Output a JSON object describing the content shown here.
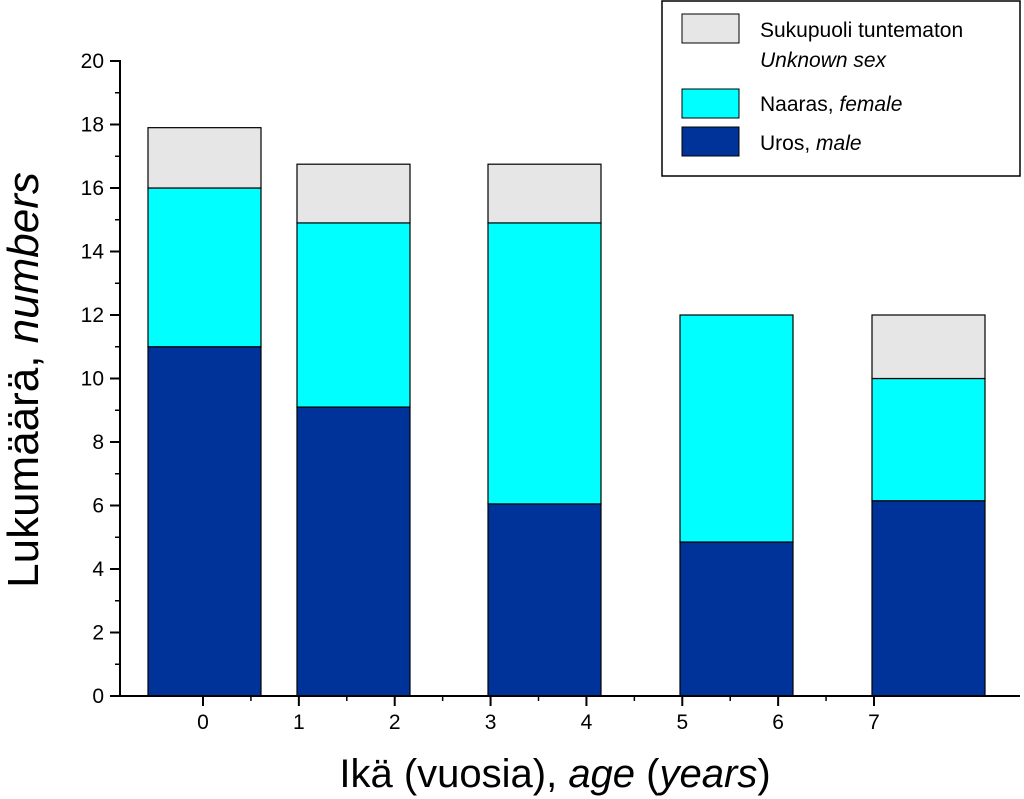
{
  "chart_data": {
    "type": "bar",
    "stacked": true,
    "categories": [
      "0",
      "1",
      "2",
      "3",
      "4",
      "5",
      "6",
      "7"
    ],
    "bar_groups": [
      {
        "male": 11,
        "female": 5,
        "unknown": 1.9
      },
      {
        "male": 9.1,
        "female": 5.8,
        "unknown": 1.85
      },
      {
        "male": 6.05,
        "female": 8.85,
        "unknown": 1.85
      },
      {
        "male": 4.85,
        "female": 7.15,
        "unknown": 0
      },
      {
        "male": 6.15,
        "female": 3.85,
        "unknown": 2
      }
    ],
    "series": [
      {
        "name": "Uros, male",
        "color": "#003399"
      },
      {
        "name": "Naaras, female",
        "color": "#00ffff"
      },
      {
        "name": "Sukupuoli tuntematon Unknown sex",
        "color": "#e6e6e6"
      }
    ],
    "ylim": [
      0,
      20
    ],
    "yticks": [
      "0",
      "2",
      "4",
      "6",
      "8",
      "10",
      "12",
      "14",
      "16",
      "18",
      "20"
    ],
    "xticks": [
      "0",
      "1",
      "2",
      "3",
      "4",
      "5",
      "6",
      "7"
    ],
    "xlabel": {
      "plain": "Ikä (vuosia), ",
      "italic_1": "age",
      "plain_2": " (",
      "italic_2": "years",
      "plain_3": ")"
    },
    "ylabel": {
      "plain": "Lukumäärä, ",
      "italic": "numbers"
    },
    "legend": {
      "position": "top-right",
      "items": [
        {
          "line1": "Sukupuoli tuntematon",
          "line2_italic": "Unknown sex",
          "color": "#e6e6e6"
        },
        {
          "plain": "Naaras, ",
          "italic": "female",
          "color": "#00ffff"
        },
        {
          "plain": "Uros, ",
          "italic": "male",
          "color": "#003399"
        }
      ]
    },
    "grid": false
  }
}
